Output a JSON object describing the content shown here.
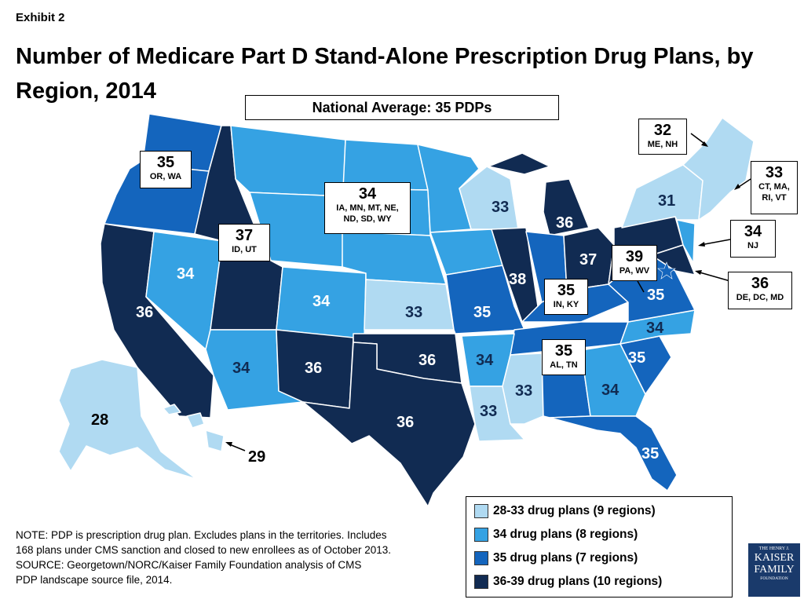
{
  "header": {
    "exhibit": "Exhibit 2",
    "title": "Number of Medicare Part D Stand-Alone Prescription Drug Plans, by Region, 2014",
    "national_average": "National Average: 35 PDPs"
  },
  "colors": {
    "light": "#b0daf2",
    "medium": "#35a2e3",
    "blue": "#1465bd",
    "dark": "#112b52",
    "border": "#ffffff"
  },
  "map_labels": [
    {
      "id": "ca",
      "value": "36"
    },
    {
      "id": "nv",
      "value": "34"
    },
    {
      "id": "co",
      "value": "34"
    },
    {
      "id": "ks",
      "value": "33"
    },
    {
      "id": "mo",
      "value": "35"
    },
    {
      "id": "il",
      "value": "38"
    },
    {
      "id": "wi",
      "value": "33"
    },
    {
      "id": "mi",
      "value": "36"
    },
    {
      "id": "oh",
      "value": "37"
    },
    {
      "id": "ny",
      "value": "31"
    },
    {
      "id": "va",
      "value": "35"
    },
    {
      "id": "nc",
      "value": "34"
    },
    {
      "id": "sc",
      "value": "35"
    },
    {
      "id": "ga",
      "value": "34"
    },
    {
      "id": "ms",
      "value": "33"
    },
    {
      "id": "la",
      "value": "33"
    },
    {
      "id": "ar",
      "value": "34"
    },
    {
      "id": "ok",
      "value": "36"
    },
    {
      "id": "tx",
      "value": "36"
    },
    {
      "id": "nm",
      "value": "36"
    },
    {
      "id": "az",
      "value": "34"
    },
    {
      "id": "fl",
      "value": "35"
    },
    {
      "id": "ak",
      "value": "28"
    },
    {
      "id": "hi",
      "value": "29"
    }
  ],
  "callouts": {
    "or_wa": {
      "value": "35",
      "states": "OR, WA"
    },
    "id_ut": {
      "value": "37",
      "states": "ID, UT"
    },
    "northcentral": {
      "value": "34",
      "states": "IA, MN, MT, NE, ND, SD, WY"
    },
    "me_nh": {
      "value": "32",
      "states": "ME, NH"
    },
    "ct_ma": {
      "value": "33",
      "states": "CT, MA, RI, VT"
    },
    "nj": {
      "value": "34",
      "states": "NJ"
    },
    "pa_wv": {
      "value": "39",
      "states": "PA, WV"
    },
    "de_dc_md": {
      "value": "36",
      "states": "DE, DC, MD"
    },
    "in_ky": {
      "value": "35",
      "states": "IN, KY"
    },
    "al_tn": {
      "value": "35",
      "states": "AL, TN"
    }
  },
  "legend": [
    {
      "label": "28-33 drug plans (9 regions)",
      "color": "#b0daf2"
    },
    {
      "label": "34 drug plans (8 regions)",
      "color": "#35a2e3"
    },
    {
      "label": "35 drug plans (7 regions)",
      "color": "#1465bd"
    },
    {
      "label": "36-39 drug plans (10 regions)",
      "color": "#112b52"
    }
  ],
  "note": {
    "line1": "NOTE: PDP is prescription drug plan. Excludes plans in the territories. Includes",
    "line2": "168 plans under CMS sanction and closed to new enrollees as of October 2013.",
    "line3": "SOURCE: Georgetown/NORC/Kaiser Family Foundation analysis of CMS",
    "line4": "PDP landscape source file, 2014."
  },
  "logo": {
    "line1": "THE HENRY J.",
    "line2": "KAISER",
    "line3": "FAMILY",
    "line4": "FOUNDATION"
  }
}
